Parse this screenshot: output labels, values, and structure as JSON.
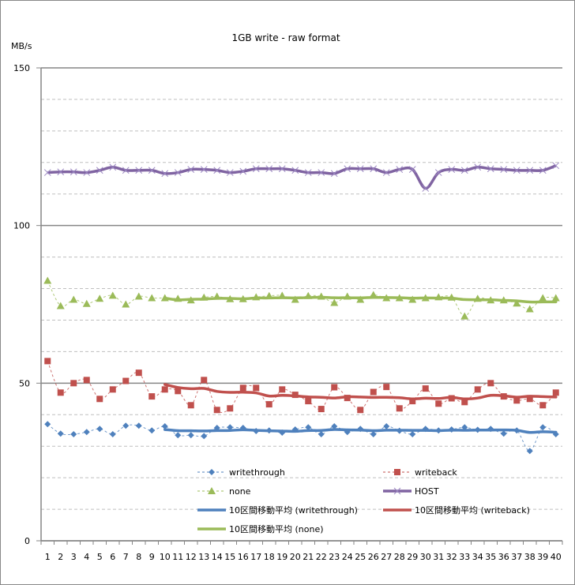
{
  "chart_data": {
    "type": "line",
    "title": "1GB write - raw format",
    "ylabel": "MB/s",
    "xlabel": "",
    "ylim": [
      0,
      150
    ],
    "yticks": [
      "0",
      "50",
      "100",
      "150"
    ],
    "minor_grid_step": 10,
    "grid": true,
    "legend_position": "bottom-right",
    "categories": [
      "1",
      "2",
      "3",
      "4",
      "5",
      "6",
      "7",
      "8",
      "9",
      "10",
      "11",
      "12",
      "13",
      "14",
      "15",
      "16",
      "17",
      "18",
      "19",
      "20",
      "21",
      "22",
      "23",
      "24",
      "25",
      "26",
      "27",
      "28",
      "29",
      "30",
      "31",
      "32",
      "33",
      "34",
      "35",
      "36",
      "37",
      "38",
      "39",
      "40"
    ],
    "series": [
      {
        "name": "writethrough",
        "color": "#4F81BD",
        "style": "dashed",
        "marker": "diamond",
        "values": [
          37,
          34,
          33.8,
          34.5,
          35.5,
          33.8,
          36.5,
          36.5,
          35,
          36.3,
          33.5,
          33.5,
          33.2,
          35.8,
          36,
          35.8,
          34.8,
          35,
          34.3,
          35.3,
          36,
          33.8,
          36.3,
          34.5,
          35.5,
          33.8,
          36.3,
          34.9,
          33.8,
          35.5,
          35,
          35.3,
          36,
          35.2,
          35.5,
          34,
          35,
          28.5,
          36,
          33.8
        ]
      },
      {
        "name": "writeback",
        "color": "#C0504D",
        "style": "dashed",
        "marker": "square",
        "values": [
          57,
          47,
          50,
          51,
          45,
          48,
          50.7,
          53.3,
          45.8,
          48,
          47.5,
          43,
          51,
          41.5,
          42,
          48.5,
          48.5,
          43.3,
          48,
          46.3,
          44.3,
          41.8,
          48.7,
          45.3,
          41.5,
          47.2,
          48.8,
          42,
          44.3,
          48.3,
          43.5,
          45.2,
          44,
          48,
          50,
          45.8,
          44.5,
          45,
          43,
          47
        ]
      },
      {
        "name": "none",
        "color": "#9BBB59",
        "style": "dashed",
        "marker": "triangle",
        "values": [
          82.5,
          74.5,
          76.5,
          75.2,
          76.8,
          77.8,
          75,
          77.5,
          77,
          77,
          76.8,
          76.3,
          77.2,
          77.5,
          76.7,
          76.7,
          77.3,
          77.7,
          77.8,
          76.5,
          77.7,
          77.5,
          75.5,
          77.5,
          76.5,
          78,
          77,
          77,
          76.5,
          77,
          77.3,
          77.2,
          71.2,
          76.8,
          76.3,
          76.3,
          75.3,
          73.5,
          77,
          77
        ]
      },
      {
        "name": "HOST",
        "color": "#8064A2",
        "style": "solid",
        "marker": "x",
        "values": [
          116.8,
          117,
          117,
          116.8,
          117.5,
          118.5,
          117.5,
          117.5,
          117.5,
          116.5,
          116.8,
          117.8,
          117.8,
          117.5,
          116.8,
          117.2,
          118,
          118,
          118,
          117.5,
          116.8,
          116.8,
          116.5,
          118,
          118,
          118,
          116.8,
          117.8,
          117.8,
          111.8,
          116.8,
          117.8,
          117.5,
          118.5,
          118,
          117.8,
          117.5,
          117.5,
          117.5,
          119
        ]
      },
      {
        "name": "10区間移動平均 (writethrough)",
        "color": "#4F81BD",
        "style": "solid-thick",
        "moving_average_of": "writethrough",
        "period": 10
      },
      {
        "name": "10区間移動平均 (writeback)",
        "color": "#C0504D",
        "style": "solid-thick",
        "moving_average_of": "writeback",
        "period": 10
      },
      {
        "name": "10区間移動平均 (none)",
        "color": "#9BBB59",
        "style": "solid-thick",
        "moving_average_of": "none",
        "period": 10
      }
    ]
  }
}
